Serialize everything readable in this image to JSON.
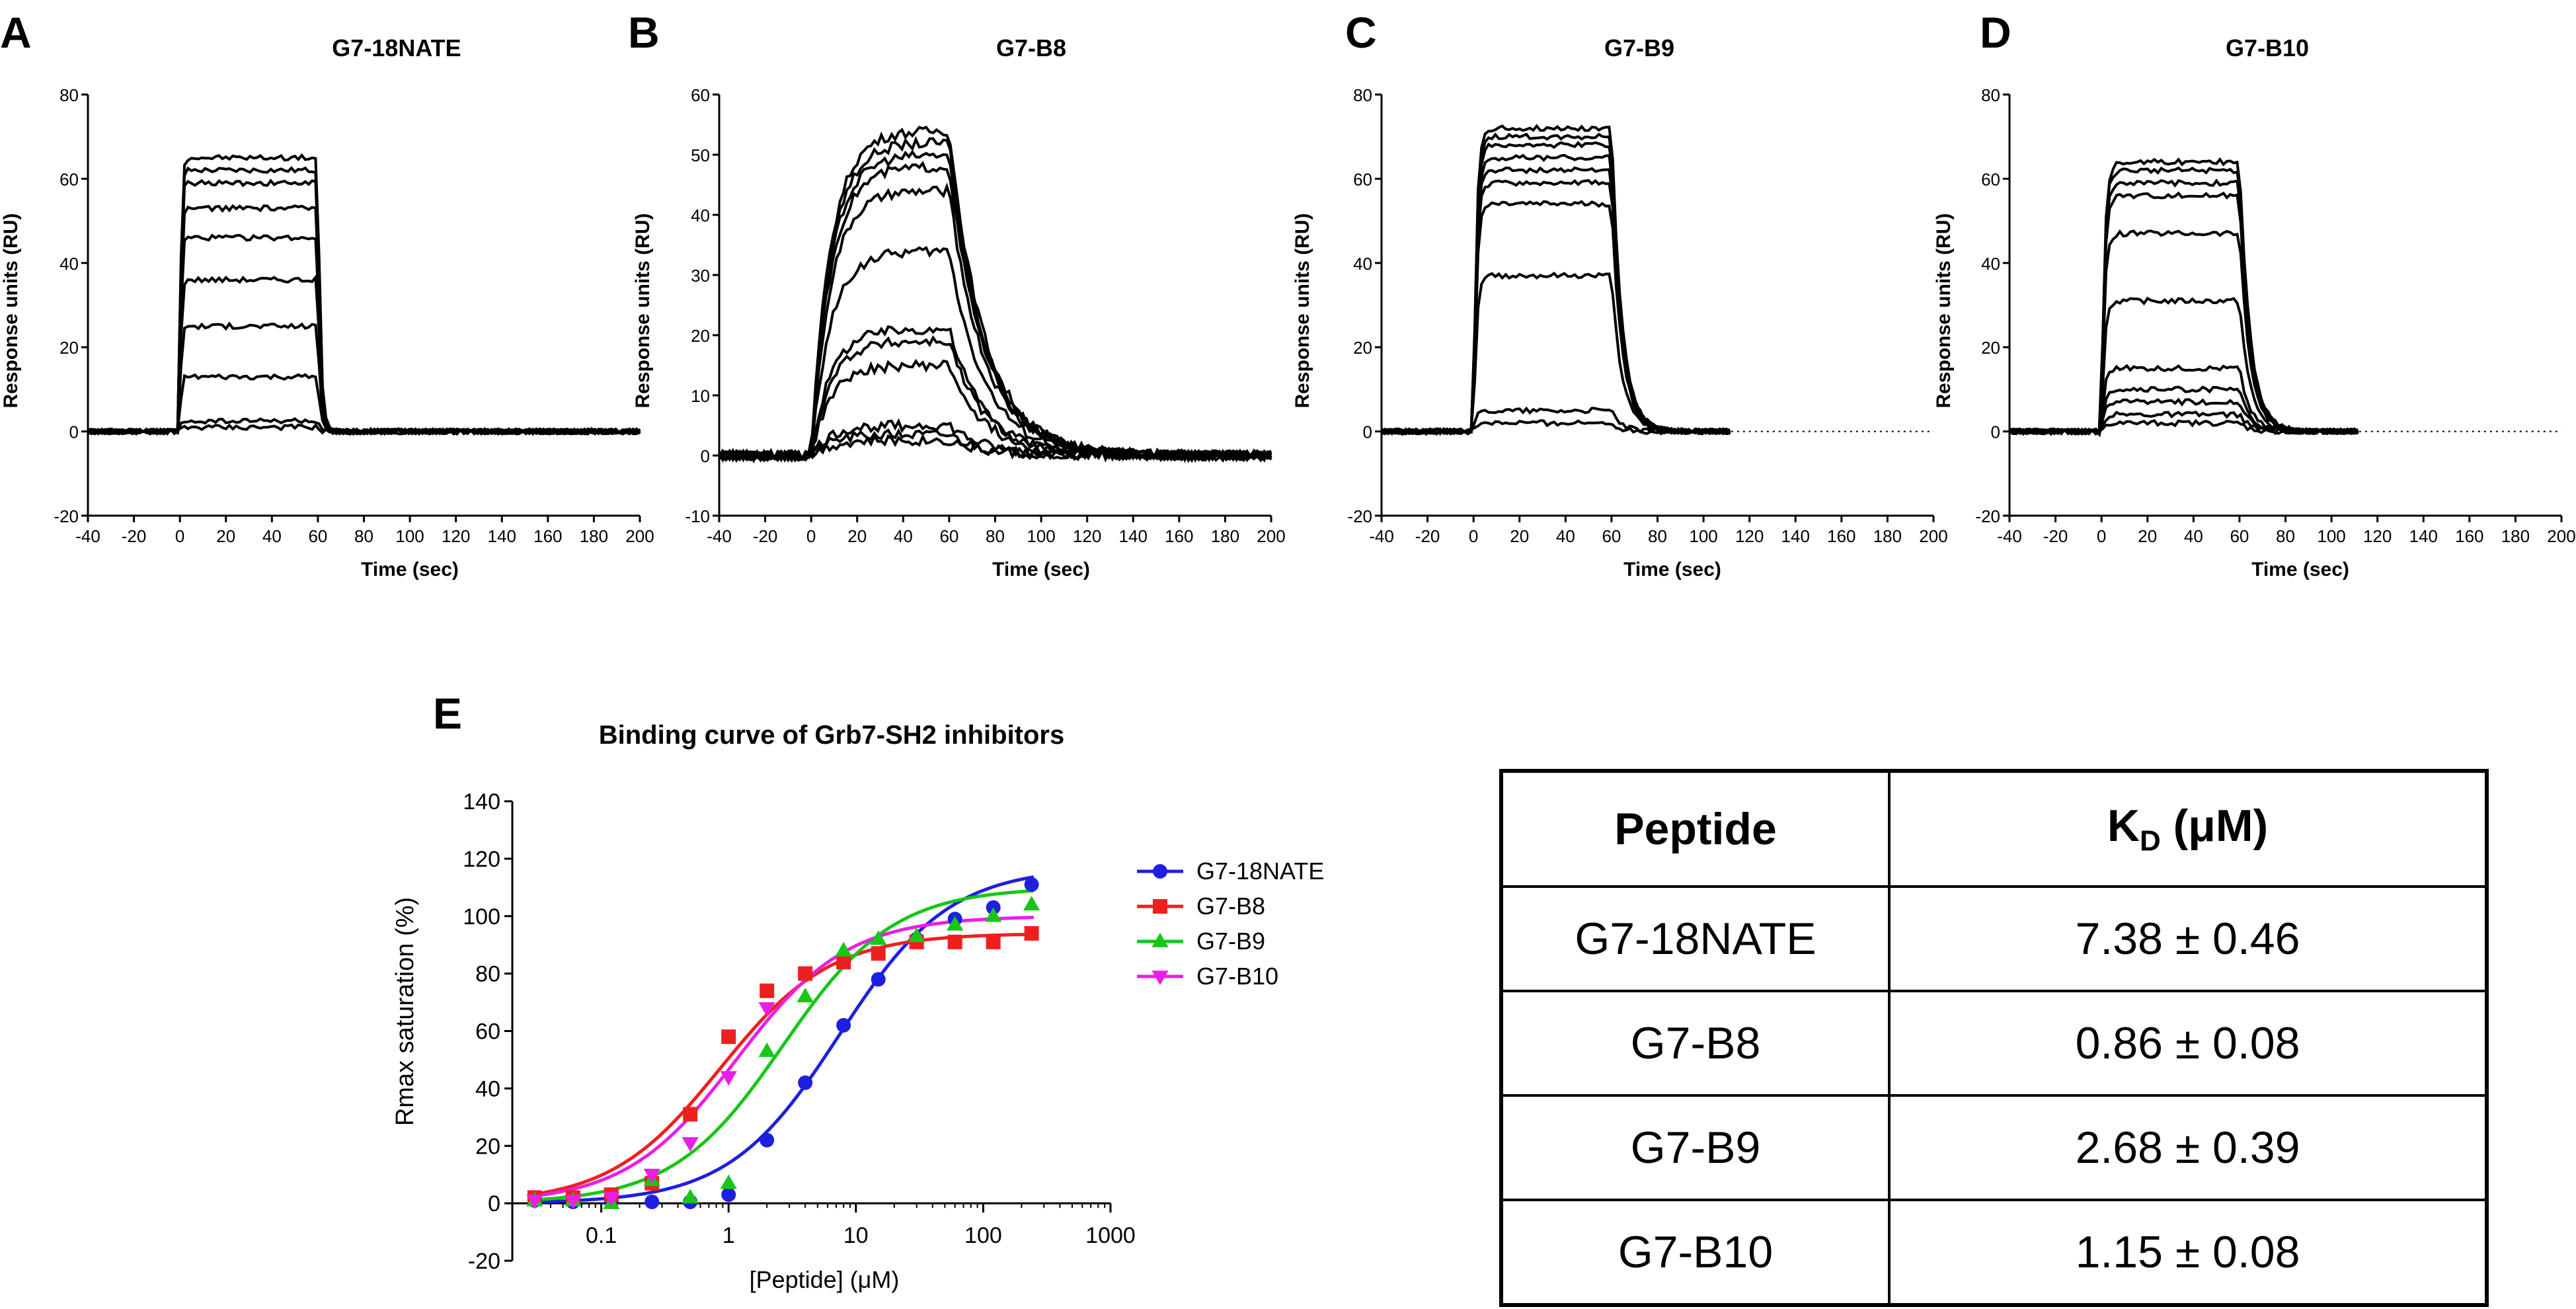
{
  "sensorgrams": [
    {
      "panel": "A",
      "title": "G7-18NATE",
      "ylabel": "Response units (RU)",
      "xlabel": "Time (sec)",
      "ylim": [
        -20,
        80
      ],
      "yticks": [
        -20,
        0,
        20,
        40,
        60,
        80
      ],
      "xlim": [
        -40,
        200
      ],
      "xticks": [
        -40,
        -20,
        0,
        20,
        40,
        60,
        80,
        100,
        120,
        140,
        160,
        180,
        200
      ],
      "t_end": 200,
      "dotted_extension": false,
      "plateaus": [
        65,
        62,
        59,
        53,
        46,
        36,
        25,
        13,
        2.5,
        1
      ],
      "kd_shape": "fast"
    },
    {
      "panel": "B",
      "title": "G7-B8",
      "ylabel": "Response units (RU)",
      "xlabel": "Time (sec)",
      "ylim": [
        -10,
        60
      ],
      "yticks": [
        -10,
        0,
        10,
        20,
        30,
        40,
        50,
        60
      ],
      "xlim": [
        -40,
        200
      ],
      "xticks": [
        -40,
        -20,
        0,
        20,
        40,
        60,
        80,
        100,
        120,
        140,
        160,
        180,
        200
      ],
      "t_end": 200,
      "dotted_extension": false,
      "plateaus": [
        54,
        52,
        50,
        48,
        44,
        34,
        21,
        19,
        15,
        5,
        3.5,
        2.5
      ],
      "kd_shape": "slow"
    },
    {
      "panel": "C",
      "title": "G7-B9",
      "ylabel": "Response units (RU)",
      "xlabel": "Time (sec)",
      "ylim": [
        -20,
        80
      ],
      "yticks": [
        -20,
        0,
        20,
        40,
        60,
        80
      ],
      "xlim": [
        -40,
        200
      ],
      "xticks": [
        -40,
        -20,
        0,
        20,
        40,
        60,
        80,
        100,
        120,
        140,
        160,
        180,
        200
      ],
      "t_end": 112,
      "dotted_extension": true,
      "plateaus": [
        72,
        70,
        68,
        65,
        62,
        59,
        54,
        37,
        5,
        2
      ],
      "kd_shape": "medium"
    },
    {
      "panel": "D",
      "title": "G7-B10",
      "ylabel": "Response units (RU)",
      "xlabel": "Time (sec)",
      "ylim": [
        -20,
        80
      ],
      "yticks": [
        -20,
        0,
        20,
        40,
        60,
        80
      ],
      "xlim": [
        -40,
        200
      ],
      "xticks": [
        -40,
        -20,
        0,
        20,
        40,
        60,
        80,
        100,
        120,
        140,
        160,
        180,
        200
      ],
      "t_end": 112,
      "dotted_extension": true,
      "plateaus": [
        64,
        62,
        59,
        56,
        47,
        31,
        15,
        10,
        7,
        4,
        2
      ],
      "kd_shape": "medium"
    }
  ],
  "chart_data": {
    "type": "scatter",
    "panel": "E",
    "title": "Binding curve of Grb7-SH2 inhibitors",
    "xlabel": "[Peptide] (μM)",
    "ylabel": "Rmax saturation (%)",
    "xscale": "log",
    "xlim": [
      0.02,
      1000
    ],
    "xticks": [
      0.1,
      1,
      10,
      100,
      1000
    ],
    "xticklabels": [
      "0.1",
      "1",
      "10",
      "100",
      "1000"
    ],
    "ylim": [
      -20,
      140
    ],
    "yticks": [
      -20,
      0,
      20,
      40,
      60,
      80,
      100,
      120,
      140
    ],
    "legend_position": "right",
    "series": [
      {
        "name": "G7-18NATE",
        "color": "#1f1fe0",
        "marker": "circle",
        "kd": 7.38,
        "bmax": 117,
        "x": [
          0.03,
          0.06,
          0.12,
          0.25,
          0.5,
          1,
          2,
          4,
          8,
          15,
          30,
          60,
          120,
          240
        ],
        "y": [
          1,
          0.5,
          0.5,
          0.5,
          0.5,
          3,
          22,
          42,
          62,
          78,
          92,
          99,
          103,
          111
        ]
      },
      {
        "name": "G7-B8",
        "color": "#ef1f1f",
        "marker": "square",
        "kd": 0.86,
        "bmax": 94,
        "x": [
          0.03,
          0.06,
          0.12,
          0.25,
          0.5,
          1,
          2,
          4,
          8,
          15,
          30,
          60,
          120,
          240
        ],
        "y": [
          2,
          2,
          3,
          7,
          31,
          58,
          74,
          80,
          84,
          87,
          91,
          91,
          91,
          94
        ]
      },
      {
        "name": "G7-B9",
        "color": "#17c617",
        "marker": "triangle-up",
        "kd": 2.68,
        "bmax": 110,
        "x": [
          0.03,
          0.06,
          0.12,
          0.25,
          0.5,
          1,
          2,
          4,
          8,
          15,
          30,
          60,
          120,
          240
        ],
        "y": [
          1,
          1,
          0,
          8,
          2,
          7,
          53,
          72,
          88,
          92,
          93,
          97,
          100,
          104
        ]
      },
      {
        "name": "G7-B10",
        "color": "#e81fe8",
        "marker": "triangle-down",
        "kd": 1.15,
        "bmax": 100,
        "x": [
          0.03,
          0.06,
          0.12,
          0.25,
          0.5,
          1,
          2
        ],
        "y": [
          1,
          1,
          2,
          10,
          21,
          44,
          68
        ]
      }
    ]
  },
  "table": {
    "headers": [
      "Peptide",
      "K",
      "D",
      "(μM)"
    ],
    "rows": [
      {
        "peptide": "G7-18NATE",
        "kd": "7.38 ± 0.46"
      },
      {
        "peptide": "G7-B8",
        "kd": "0.86 ± 0.08"
      },
      {
        "peptide": "G7-B9",
        "kd": "2.68 ± 0.39"
      },
      {
        "peptide": "G7-B10",
        "kd": "1.15 ± 0.08"
      }
    ]
  }
}
